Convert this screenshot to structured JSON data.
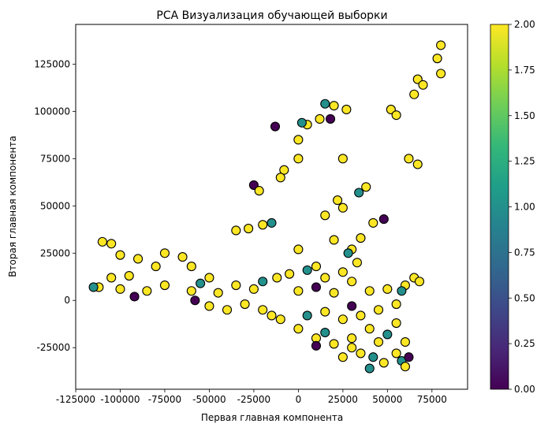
{
  "chart_data": {
    "type": "scatter",
    "title": "PCA Визуализация обучающей выборки",
    "xlabel": "Первая главная компонента",
    "ylabel": "Вторая главная компонента",
    "xlim": [
      -125000,
      95000
    ],
    "ylim": [
      -47000,
      146000
    ],
    "xticks": [
      -125000,
      -100000,
      -75000,
      -50000,
      -25000,
      0,
      25000,
      50000,
      75000
    ],
    "yticks": [
      -25000,
      0,
      25000,
      50000,
      75000,
      100000,
      125000
    ],
    "grid": false,
    "colorbar": {
      "min": 0.0,
      "max": 2.0,
      "ticks": [
        "0.00",
        "0.25",
        "0.50",
        "0.75",
        "1.00",
        "1.25",
        "1.50",
        "1.75",
        "2.00"
      ],
      "colormap": "viridis",
      "stops": [
        "#440154",
        "#482878",
        "#3e4989",
        "#31688e",
        "#26828e",
        "#1f9e89",
        "#35b779",
        "#6ece58",
        "#b5de2b",
        "#fde725"
      ]
    },
    "marker_edge_color": "#000000",
    "clusters": [
      {
        "x": 80000,
        "y": 135000,
        "c": 2
      },
      {
        "x": 78000,
        "y": 128000,
        "c": 2
      },
      {
        "x": 80000,
        "y": 120000,
        "c": 2
      },
      {
        "x": 67000,
        "y": 117000,
        "c": 2
      },
      {
        "x": 70000,
        "y": 114000,
        "c": 2
      },
      {
        "x": 65000,
        "y": 109000,
        "c": 2
      },
      {
        "x": 52000,
        "y": 101000,
        "c": 2
      },
      {
        "x": 55000,
        "y": 98000,
        "c": 2
      },
      {
        "x": 20000,
        "y": 103000,
        "c": 2
      },
      {
        "x": 15000,
        "y": 104000,
        "c": 1
      },
      {
        "x": 27000,
        "y": 101000,
        "c": 2
      },
      {
        "x": 12000,
        "y": 96000,
        "c": 2
      },
      {
        "x": 18000,
        "y": 96000,
        "c": 0
      },
      {
        "x": 5000,
        "y": 93000,
        "c": 2
      },
      {
        "x": 2000,
        "y": 94000,
        "c": 1
      },
      {
        "x": -13000,
        "y": 92000,
        "c": 0
      },
      {
        "x": 0,
        "y": 85000,
        "c": 2
      },
      {
        "x": 25000,
        "y": 75000,
        "c": 2
      },
      {
        "x": 0,
        "y": 75000,
        "c": 2
      },
      {
        "x": 62000,
        "y": 75000,
        "c": 2
      },
      {
        "x": 67000,
        "y": 72000,
        "c": 2
      },
      {
        "x": -8000,
        "y": 69000,
        "c": 2
      },
      {
        "x": -10000,
        "y": 65000,
        "c": 2
      },
      {
        "x": 38000,
        "y": 60000,
        "c": 2
      },
      {
        "x": 34000,
        "y": 57000,
        "c": 1
      },
      {
        "x": -25000,
        "y": 61000,
        "c": 0
      },
      {
        "x": -22000,
        "y": 58000,
        "c": 2
      },
      {
        "x": 22000,
        "y": 53000,
        "c": 2
      },
      {
        "x": 15000,
        "y": 45000,
        "c": 2
      },
      {
        "x": 25000,
        "y": 49000,
        "c": 2
      },
      {
        "x": 48000,
        "y": 43000,
        "c": 0
      },
      {
        "x": 42000,
        "y": 41000,
        "c": 2
      },
      {
        "x": -15000,
        "y": 41000,
        "c": 1
      },
      {
        "x": -35000,
        "y": 37000,
        "c": 2
      },
      {
        "x": -28000,
        "y": 38000,
        "c": 2
      },
      {
        "x": -20000,
        "y": 40000,
        "c": 2
      },
      {
        "x": 35000,
        "y": 33000,
        "c": 2
      },
      {
        "x": 30000,
        "y": 27000,
        "c": 2
      },
      {
        "x": 28000,
        "y": 25000,
        "c": 1
      },
      {
        "x": 20000,
        "y": 32000,
        "c": 2
      },
      {
        "x": 33000,
        "y": 20000,
        "c": 2
      },
      {
        "x": 0,
        "y": 27000,
        "c": 2
      },
      {
        "x": -105000,
        "y": 30000,
        "c": 2
      },
      {
        "x": -110000,
        "y": 31000,
        "c": 2
      },
      {
        "x": -100000,
        "y": 24000,
        "c": 2
      },
      {
        "x": -90000,
        "y": 22000,
        "c": 2
      },
      {
        "x": -75000,
        "y": 25000,
        "c": 2
      },
      {
        "x": -65000,
        "y": 23000,
        "c": 2
      },
      {
        "x": -80000,
        "y": 18000,
        "c": 2
      },
      {
        "x": -60000,
        "y": 18000,
        "c": 2
      },
      {
        "x": -50000,
        "y": 12000,
        "c": 2
      },
      {
        "x": -95000,
        "y": 13000,
        "c": 2
      },
      {
        "x": -105000,
        "y": 12000,
        "c": 2
      },
      {
        "x": -112000,
        "y": 7000,
        "c": 2
      },
      {
        "x": -115000,
        "y": 7000,
        "c": 1
      },
      {
        "x": -100000,
        "y": 6000,
        "c": 2
      },
      {
        "x": -92000,
        "y": 2000,
        "c": 0
      },
      {
        "x": -85000,
        "y": 5000,
        "c": 2
      },
      {
        "x": -75000,
        "y": 8000,
        "c": 2
      },
      {
        "x": -60000,
        "y": 5000,
        "c": 2
      },
      {
        "x": -55000,
        "y": 9000,
        "c": 1
      },
      {
        "x": -58000,
        "y": 0,
        "c": 0
      },
      {
        "x": -50000,
        "y": -3000,
        "c": 2
      },
      {
        "x": -45000,
        "y": 4000,
        "c": 2
      },
      {
        "x": -35000,
        "y": 8000,
        "c": 2
      },
      {
        "x": -25000,
        "y": 6000,
        "c": 2
      },
      {
        "x": -20000,
        "y": 10000,
        "c": 1
      },
      {
        "x": -12000,
        "y": 12000,
        "c": 2
      },
      {
        "x": -5000,
        "y": 14000,
        "c": 2
      },
      {
        "x": 5000,
        "y": 16000,
        "c": 1
      },
      {
        "x": 10000,
        "y": 18000,
        "c": 2
      },
      {
        "x": 15000,
        "y": 12000,
        "c": 2
      },
      {
        "x": 25000,
        "y": 15000,
        "c": 2
      },
      {
        "x": 30000,
        "y": 10000,
        "c": 2
      },
      {
        "x": 0,
        "y": 5000,
        "c": 2
      },
      {
        "x": 10000,
        "y": 7000,
        "c": 0
      },
      {
        "x": 20000,
        "y": 4000,
        "c": 2
      },
      {
        "x": 40000,
        "y": 5000,
        "c": 2
      },
      {
        "x": 50000,
        "y": 6000,
        "c": 2
      },
      {
        "x": 60000,
        "y": 8000,
        "c": 2
      },
      {
        "x": 65000,
        "y": 12000,
        "c": 2
      },
      {
        "x": 68000,
        "y": 10000,
        "c": 2
      },
      {
        "x": 58000,
        "y": 5000,
        "c": 1
      },
      {
        "x": 55000,
        "y": -2000,
        "c": 2
      },
      {
        "x": -40000,
        "y": -5000,
        "c": 2
      },
      {
        "x": -30000,
        "y": -2000,
        "c": 2
      },
      {
        "x": -20000,
        "y": -5000,
        "c": 2
      },
      {
        "x": -15000,
        "y": -8000,
        "c": 2
      },
      {
        "x": -10000,
        "y": -10000,
        "c": 2
      },
      {
        "x": 0,
        "y": -15000,
        "c": 2
      },
      {
        "x": 5000,
        "y": -8000,
        "c": 1
      },
      {
        "x": 15000,
        "y": -6000,
        "c": 2
      },
      {
        "x": 25000,
        "y": -10000,
        "c": 2
      },
      {
        "x": 30000,
        "y": -3000,
        "c": 0
      },
      {
        "x": 35000,
        "y": -8000,
        "c": 2
      },
      {
        "x": 45000,
        "y": -5000,
        "c": 2
      },
      {
        "x": 10000,
        "y": -20000,
        "c": 2
      },
      {
        "x": 15000,
        "y": -17000,
        "c": 1
      },
      {
        "x": 20000,
        "y": -23000,
        "c": 2
      },
      {
        "x": 10000,
        "y": -24000,
        "c": 0
      },
      {
        "x": 30000,
        "y": -20000,
        "c": 2
      },
      {
        "x": 40000,
        "y": -15000,
        "c": 2
      },
      {
        "x": 45000,
        "y": -22000,
        "c": 2
      },
      {
        "x": 50000,
        "y": -18000,
        "c": 1
      },
      {
        "x": 55000,
        "y": -12000,
        "c": 2
      },
      {
        "x": 60000,
        "y": -22000,
        "c": 2
      },
      {
        "x": 35000,
        "y": -28000,
        "c": 2
      },
      {
        "x": 42000,
        "y": -30000,
        "c": 1
      },
      {
        "x": 48000,
        "y": -33000,
        "c": 2
      },
      {
        "x": 55000,
        "y": -28000,
        "c": 2
      },
      {
        "x": 58000,
        "y": -32000,
        "c": 1
      },
      {
        "x": 60000,
        "y": -35000,
        "c": 2
      },
      {
        "x": 62000,
        "y": -30000,
        "c": 0
      },
      {
        "x": 30000,
        "y": -25000,
        "c": 2
      },
      {
        "x": 25000,
        "y": -30000,
        "c": 2
      },
      {
        "x": 40000,
        "y": -36000,
        "c": 1
      }
    ]
  }
}
